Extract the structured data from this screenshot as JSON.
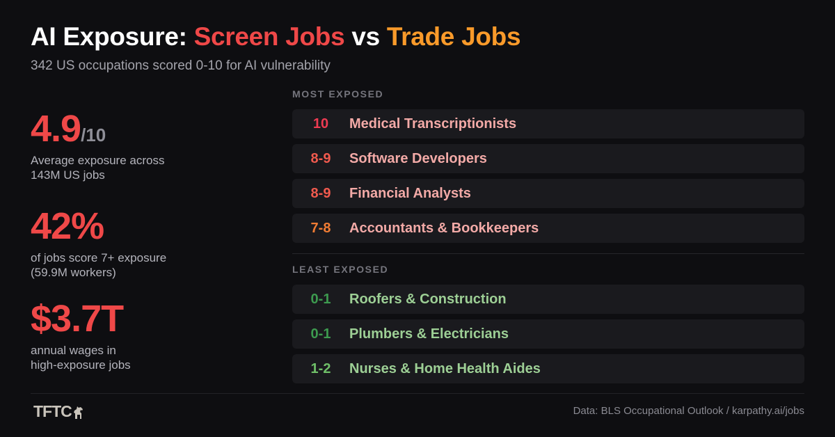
{
  "header": {
    "title_prefix": "AI Exposure: ",
    "title_screen": "Screen Jobs",
    "title_vs": " vs ",
    "title_trade": "Trade Jobs",
    "subtitle": "342 US occupations scored 0-10 for AI vulnerability"
  },
  "stats": [
    {
      "value": "4.9",
      "suffix": "/10",
      "desc_line1": "Average exposure across",
      "desc_line2": "143M US jobs"
    },
    {
      "value": "42%",
      "suffix": "",
      "desc_line1": "of jobs score 7+ exposure",
      "desc_line2": "(59.9M workers)"
    },
    {
      "value": "$3.7T",
      "suffix": "",
      "desc_line1": "annual wages in",
      "desc_line2": "high-exposure jobs"
    }
  ],
  "most_exposed": {
    "label": "MOST EXPOSED",
    "items": [
      {
        "score": "10",
        "job": "Medical Transcriptionists",
        "color": "#ee3b52"
      },
      {
        "score": "8-9",
        "job": "Software Developers",
        "color": "#f05a4e"
      },
      {
        "score": "8-9",
        "job": "Financial Analysts",
        "color": "#f05a4e"
      },
      {
        "score": "7-8",
        "job": "Accountants & Bookkeepers",
        "color": "#f07c34"
      }
    ]
  },
  "least_exposed": {
    "label": "LEAST EXPOSED",
    "items": [
      {
        "score": "0-1",
        "job": "Roofers & Construction",
        "color": "#3d9a4f"
      },
      {
        "score": "0-1",
        "job": "Plumbers & Electricians",
        "color": "#3d9a4f"
      },
      {
        "score": "1-2",
        "job": "Nurses & Home Health Aides",
        "color": "#6fbf68"
      }
    ]
  },
  "footer": {
    "logo_text": "TFTC",
    "logo_icon": "horse-icon",
    "source": "Data: BLS Occupational Outlook / karpathy.ai/jobs"
  },
  "colors": {
    "background": "#0e0e11",
    "accent_red": "#ef4848",
    "accent_orange": "#f99a2a",
    "row_background": "#1a1a1e"
  }
}
